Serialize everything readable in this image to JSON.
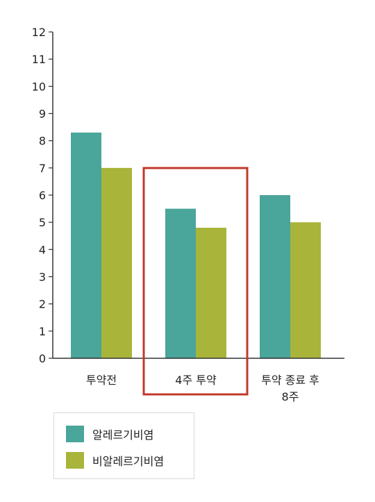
{
  "chart_data": {
    "type": "bar",
    "categories": [
      {
        "lines": [
          "투약전"
        ]
      },
      {
        "lines": [
          "4주 투약"
        ]
      },
      {
        "lines": [
          "투약 종료 후",
          "8주"
        ]
      }
    ],
    "series": [
      {
        "name": "알레르기비염",
        "color": "#4aa59b",
        "values": [
          8.3,
          5.5,
          6.0
        ]
      },
      {
        "name": "비알레르기비염",
        "color": "#a8b43a",
        "values": [
          7.0,
          4.8,
          5.0
        ]
      }
    ],
    "yticks": [
      "0",
      "1",
      "2",
      "3",
      "4",
      "5",
      "6",
      "7",
      "8",
      "9",
      "10",
      "11",
      "12"
    ],
    "ylim": [
      0,
      12
    ],
    "highlight_category_index": 1,
    "highlight_color": "#c0392b",
    "grid": false,
    "legend_position": "bottom-left"
  }
}
